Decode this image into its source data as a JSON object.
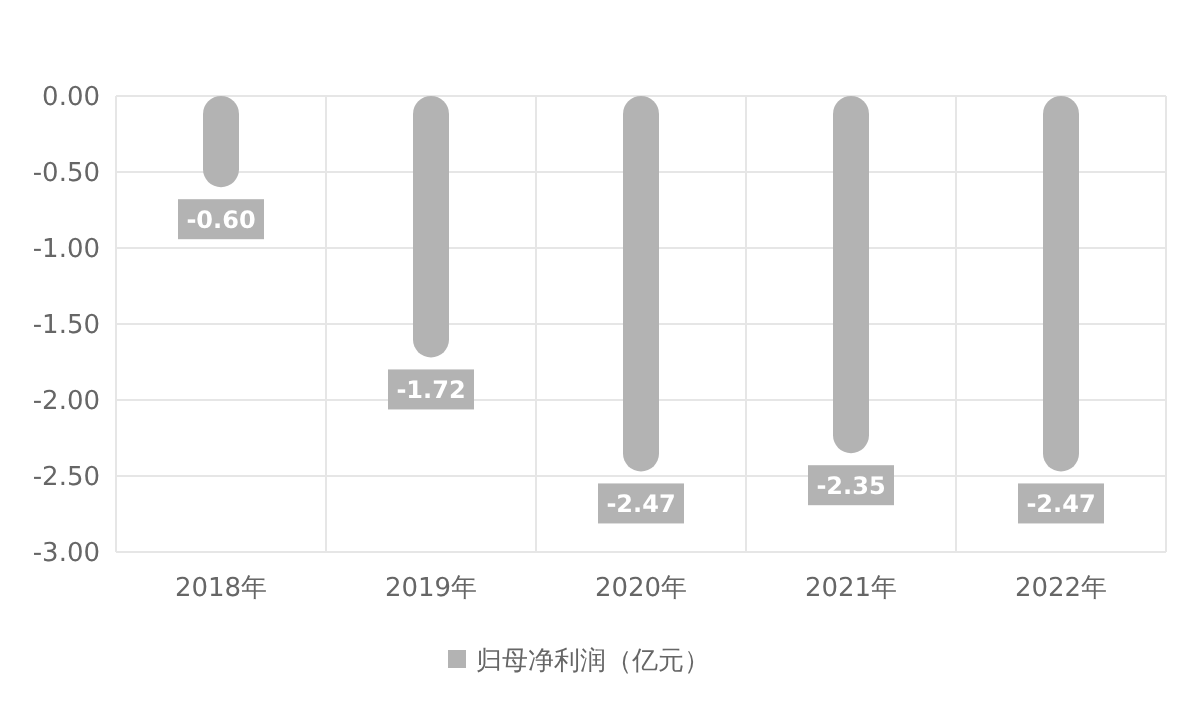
{
  "chart_data": {
    "type": "bar",
    "categories": [
      "2018年",
      "2019年",
      "2020年",
      "2021年",
      "2022年"
    ],
    "series": [
      {
        "name": "归母净利润（亿元）",
        "color": "#b3b3b3",
        "values": [
          -0.6,
          -1.72,
          -2.47,
          -2.35,
          -2.47
        ]
      }
    ],
    "ylim": [
      -3,
      0
    ],
    "yticks": [
      {
        "value": 0,
        "label": "0.00"
      },
      {
        "value": -0.5,
        "label": "-0.50"
      },
      {
        "value": -1,
        "label": "-1.00"
      },
      {
        "value": -1.5,
        "label": "-1.50"
      },
      {
        "value": -2,
        "label": "-2.00"
      },
      {
        "value": -2.5,
        "label": "-2.50"
      },
      {
        "value": -3,
        "label": "-3.00"
      }
    ],
    "value_labels": [
      "-0.60",
      "-1.72",
      "-2.47",
      "-2.35",
      "-2.47"
    ],
    "grid": true,
    "legend": "bottom"
  }
}
